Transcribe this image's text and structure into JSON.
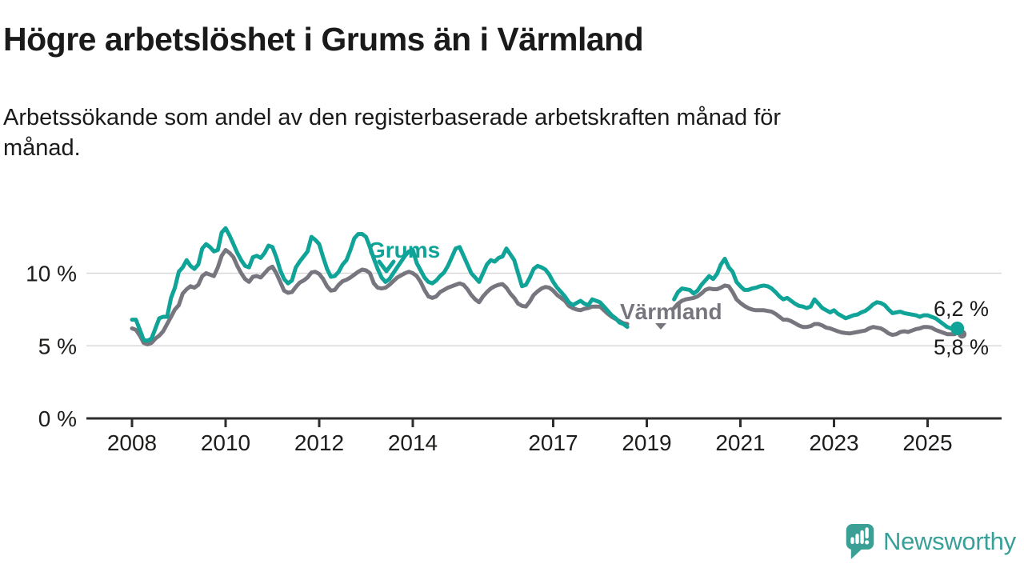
{
  "header": {
    "title": "Högre arbetslöshet i Grums än i Värmland",
    "subtitle_line1": "Arbetssökande som andel av den registerbaserade arbetskraften månad för",
    "subtitle_line2": "månad."
  },
  "chart_data": {
    "type": "line",
    "unit": "%",
    "frequency": "monthly",
    "x_start": "2008-01",
    "x_end": "2025-08",
    "data_gap": "2018-09 to 2019-07 (no values plotted)",
    "grid": "horizontal only",
    "ylim": [
      0,
      13.5
    ],
    "x_ticks": [
      2008,
      2010,
      2012,
      2014,
      2017,
      2019,
      2021,
      2023,
      2025
    ],
    "y_ticks": [
      {
        "value": 0,
        "label": "0 %"
      },
      {
        "value": 5,
        "label": "5 %"
      },
      {
        "value": 10,
        "label": "10 %"
      }
    ],
    "axis_color": "#2d2d2d",
    "grid_color": "#d8d8d8",
    "series": [
      {
        "name": "Grums",
        "color": "#10a397",
        "end_label": "6,2 %",
        "end_value": 6.2,
        "values": [
          6.8,
          6.8,
          6.1,
          5.4,
          5.35,
          5.5,
          6.2,
          6.9,
          7.0,
          7.0,
          8.3,
          9.0,
          10.1,
          10.4,
          10.9,
          10.5,
          10.3,
          10.6,
          11.7,
          12.0,
          11.8,
          11.5,
          11.6,
          12.8,
          13.1,
          12.6,
          12.0,
          11.4,
          10.9,
          10.5,
          10.4,
          11.1,
          11.2,
          11.05,
          11.4,
          11.9,
          11.8,
          11.1,
          10.2,
          9.6,
          9.3,
          9.5,
          10.4,
          10.8,
          11.15,
          11.5,
          12.5,
          12.3,
          12.0,
          11.1,
          10.3,
          9.75,
          9.8,
          10.1,
          10.6,
          10.9,
          11.6,
          12.4,
          12.7,
          12.7,
          12.5,
          11.8,
          11.0,
          10.3,
          9.7,
          9.4,
          9.6,
          10.0,
          10.4,
          10.8,
          11.2,
          11.5,
          11.6,
          10.7,
          10.2,
          9.7,
          9.4,
          9.3,
          9.5,
          9.8,
          10.05,
          10.5,
          11.1,
          11.7,
          11.8,
          11.2,
          10.6,
          10.0,
          9.7,
          9.4,
          10.0,
          10.6,
          10.9,
          10.8,
          11.05,
          11.15,
          11.7,
          11.3,
          10.9,
          10.0,
          9.1,
          9.2,
          9.7,
          10.3,
          10.5,
          10.4,
          10.25,
          9.9,
          9.4,
          9.0,
          8.7,
          8.4,
          8.0,
          7.8,
          7.95,
          8.1,
          7.9,
          7.8,
          8.2,
          8.1,
          8.0,
          7.7,
          7.4,
          7.1,
          6.9,
          6.6,
          6.5,
          6.3,
          null,
          null,
          null,
          null,
          null,
          null,
          null,
          null,
          null,
          null,
          null,
          8.2,
          8.7,
          8.95,
          8.9,
          8.85,
          8.6,
          8.8,
          9.2,
          9.5,
          9.8,
          9.6,
          9.95,
          10.6,
          11.0,
          10.4,
          10.1,
          9.4,
          9.1,
          8.85,
          8.85,
          8.95,
          9.0,
          9.1,
          9.15,
          9.1,
          8.95,
          8.7,
          8.4,
          8.2,
          8.3,
          8.1,
          7.9,
          7.75,
          7.7,
          7.6,
          7.7,
          8.2,
          7.9,
          7.6,
          7.45,
          7.3,
          7.45,
          7.2,
          7.05,
          6.9,
          7.0,
          7.1,
          7.15,
          7.3,
          7.4,
          7.6,
          7.85,
          8.0,
          7.95,
          7.8,
          7.5,
          7.25,
          7.3,
          7.35,
          7.25,
          7.2,
          7.15,
          7.1,
          7.0,
          7.1,
          7.1,
          7.0,
          6.9,
          6.7,
          6.5,
          6.3,
          6.2,
          6.2
        ]
      },
      {
        "name": "Värmland",
        "color": "#77767e",
        "end_label": "5,8 %",
        "end_value": 5.8,
        "values": [
          6.2,
          6.1,
          5.7,
          5.2,
          5.1,
          5.2,
          5.5,
          5.7,
          6.0,
          6.5,
          7.0,
          7.5,
          7.8,
          8.6,
          8.9,
          9.1,
          9.0,
          9.2,
          9.8,
          10.0,
          9.9,
          9.8,
          10.4,
          11.2,
          11.6,
          11.4,
          11.1,
          10.5,
          10.0,
          9.6,
          9.4,
          9.75,
          9.8,
          9.7,
          10.0,
          10.3,
          10.45,
          10.0,
          9.4,
          8.8,
          8.65,
          8.7,
          9.05,
          9.35,
          9.5,
          9.7,
          10.05,
          10.1,
          9.95,
          9.6,
          9.1,
          8.8,
          8.85,
          9.2,
          9.45,
          9.55,
          9.7,
          9.9,
          10.1,
          10.25,
          10.2,
          10.0,
          9.3,
          9.0,
          8.95,
          9.0,
          9.2,
          9.45,
          9.7,
          9.85,
          10.0,
          10.1,
          10.0,
          9.8,
          9.4,
          8.85,
          8.4,
          8.3,
          8.4,
          8.7,
          8.85,
          9.0,
          9.1,
          9.2,
          9.3,
          9.2,
          8.9,
          8.5,
          8.2,
          8.0,
          8.4,
          8.7,
          8.95,
          9.1,
          9.2,
          9.25,
          9.0,
          8.6,
          8.3,
          7.9,
          7.75,
          7.7,
          8.05,
          8.5,
          8.75,
          8.95,
          9.05,
          9.0,
          8.8,
          8.5,
          8.3,
          8.1,
          7.75,
          7.6,
          7.5,
          7.45,
          7.55,
          7.6,
          7.7,
          7.7,
          7.7,
          7.45,
          7.2,
          7.0,
          6.85,
          6.7,
          6.55,
          6.5,
          null,
          null,
          null,
          null,
          null,
          null,
          null,
          null,
          null,
          null,
          null,
          7.6,
          7.9,
          8.1,
          8.2,
          8.25,
          8.3,
          8.4,
          8.6,
          8.85,
          8.95,
          8.9,
          8.9,
          9.0,
          9.15,
          9.1,
          8.7,
          8.2,
          7.95,
          7.75,
          7.6,
          7.5,
          7.45,
          7.45,
          7.45,
          7.4,
          7.35,
          7.2,
          7.0,
          6.8,
          6.8,
          6.7,
          6.55,
          6.4,
          6.3,
          6.3,
          6.35,
          6.5,
          6.5,
          6.4,
          6.25,
          6.2,
          6.1,
          6.0,
          5.92,
          5.88,
          5.85,
          5.9,
          5.95,
          6.0,
          6.05,
          6.2,
          6.3,
          6.25,
          6.2,
          6.05,
          5.85,
          5.75,
          5.8,
          5.95,
          6.0,
          5.95,
          6.05,
          6.15,
          6.2,
          6.3,
          6.3,
          6.25,
          6.1,
          6.0,
          5.9,
          5.8,
          5.8,
          5.8
        ]
      }
    ]
  },
  "footer": {
    "brand": "Newsworthy",
    "logo_icon": "speech-bubble-bar-chart-icon",
    "logo_color": "#3aa096"
  }
}
